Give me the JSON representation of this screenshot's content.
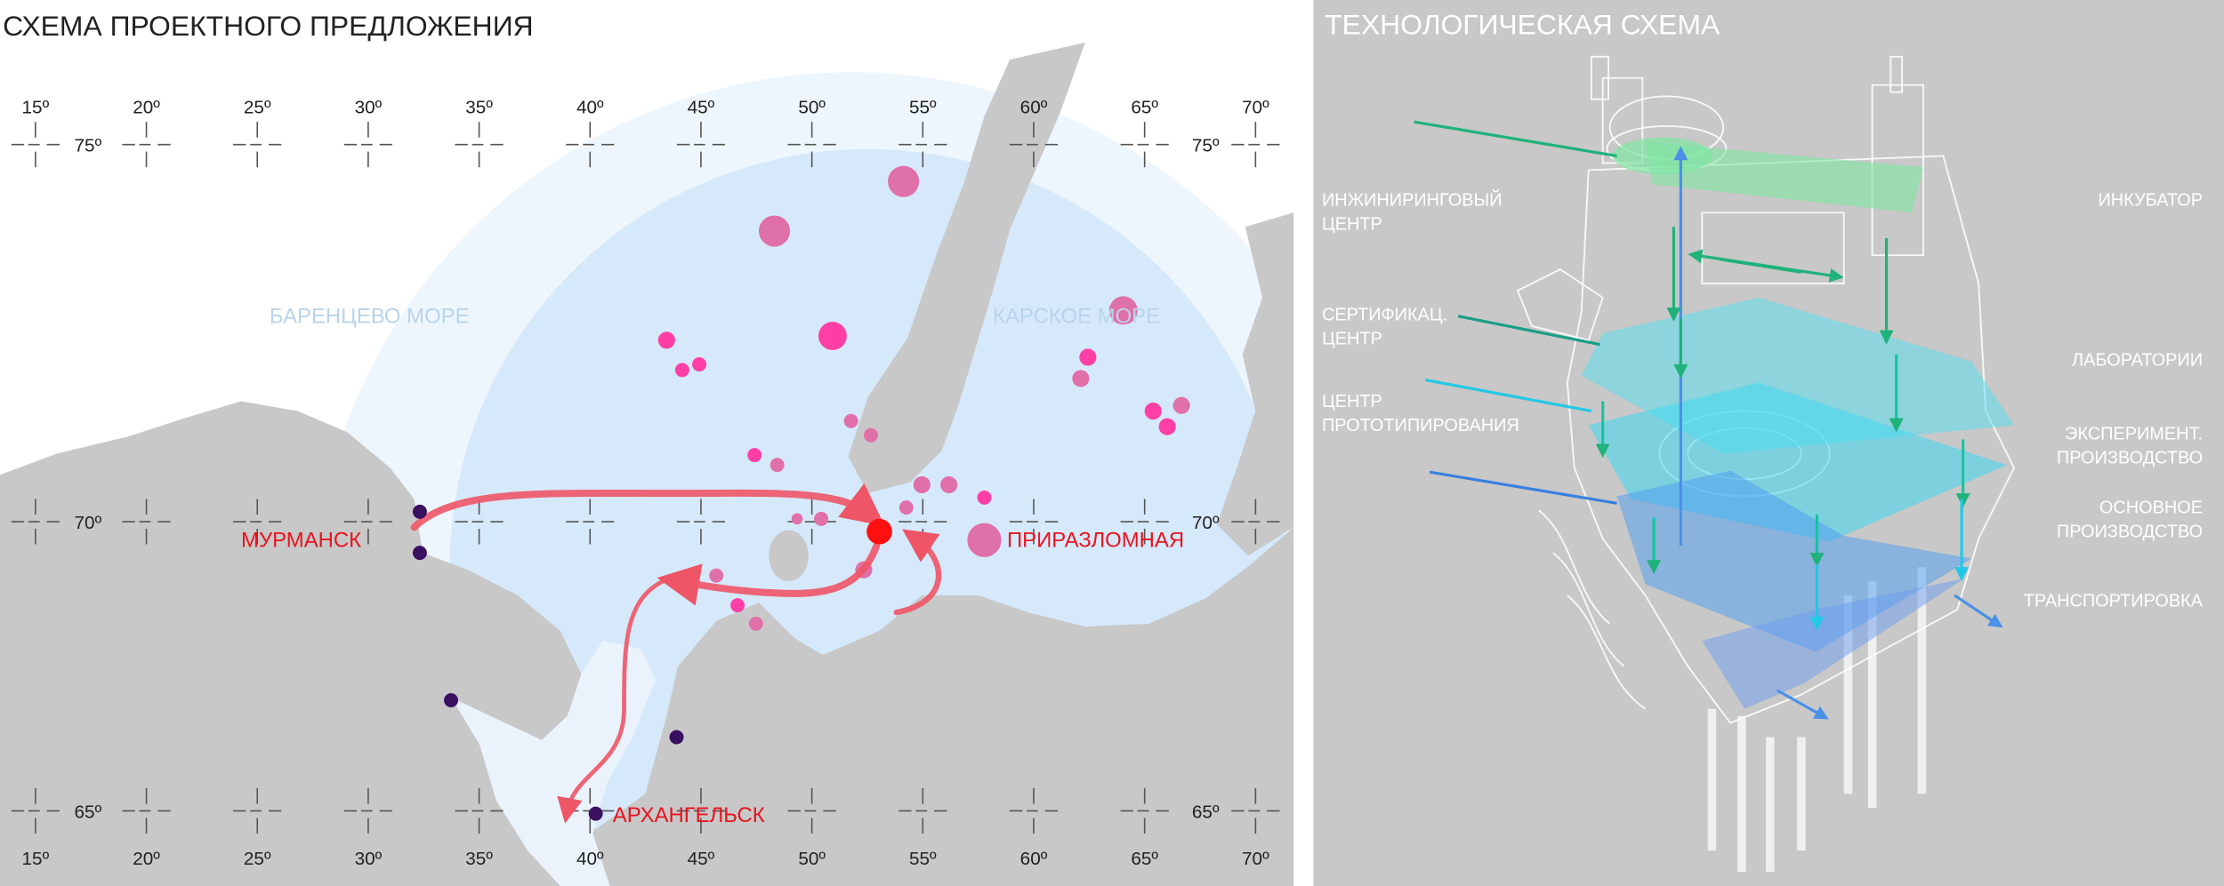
{
  "left_panel": {
    "title": "СХЕМА ПРОЕКТНОГО ПРЕДЛОЖЕНИЯ",
    "longitudes": [
      "15º",
      "20º",
      "25º",
      "30º",
      "35º",
      "40º",
      "45º",
      "50º",
      "55º",
      "60º",
      "65º",
      "70º"
    ],
    "latitudes": [
      "75º",
      "70º",
      "65º"
    ],
    "seas": [
      "БАРЕНЦЕВО МОРЕ",
      "КАРСКОЕ МОРЕ"
    ],
    "cities": {
      "murmansk": "МУРМАНСК",
      "prirazlomnaya": "ПРИРАЗЛОМНАЯ",
      "arkhangelsk": "АРХАНГЕЛЬСК"
    },
    "colors": {
      "land": "#c8c8c8",
      "sea_outer": "#eef6fd",
      "sea_inner": "#d6e9fb",
      "field": "#e85aa8",
      "route": "#ee5566",
      "city_dot": "#3a1060",
      "city_text": "#e8141e"
    }
  },
  "right_panel": {
    "title": "ТЕХНОЛОГИЧЕСКАЯ СХЕМА",
    "labels_left": [
      [
        "ИНЖИНИРИНГОВЫЙ",
        "ЦЕНТР"
      ],
      [
        "СЕРТИФИКАЦ.",
        "ЦЕНТР"
      ],
      [
        "ЦЕНТР",
        "ПРОТОТИПИРОВАНИЯ"
      ]
    ],
    "labels_right": [
      [
        "ИНКУБАТОР"
      ],
      [
        "ЛАБОРАТОРИИ"
      ],
      [
        "ЭКСПЕРИМЕНТ.",
        "ПРОИЗВОДСТВО"
      ],
      [
        "ОСНОВНОЕ",
        "ПРОИЗВОДСТВО"
      ],
      [
        "ТРАНСПОРТИРОВКА"
      ]
    ],
    "colors": {
      "background": "#c8c8c8",
      "green": "#2ec27e",
      "cyan": "#3fd8f0",
      "blue": "#4a90e8"
    }
  }
}
